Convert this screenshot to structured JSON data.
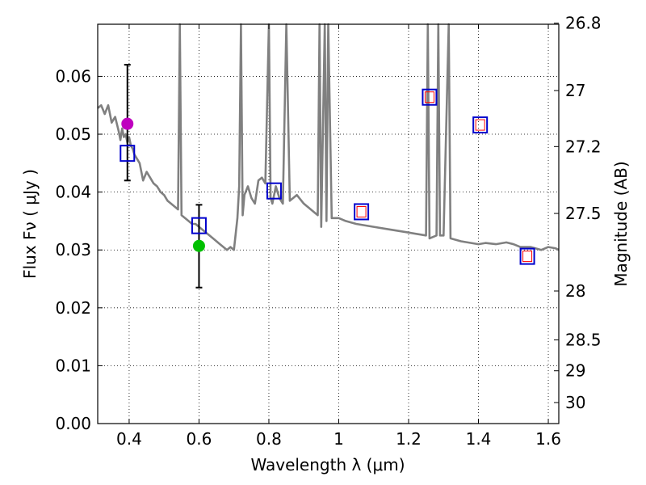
{
  "chart_data": {
    "type": "scatter",
    "xlabel": "Wavelength  λ (μm)",
    "ylabel": "Flux  Fν  ( μJy )",
    "y2label": "Magnitude (AB)",
    "xlim": [
      0.31,
      1.63
    ],
    "ylim": [
      0.0,
      0.069
    ],
    "xticks": [
      0.4,
      0.6,
      0.8,
      1.0,
      1.2,
      1.4,
      1.6
    ],
    "xtick_labels": [
      "0.4",
      "0.6",
      "0.8",
      "1",
      "1.2",
      "1.4",
      "1.6"
    ],
    "yticks": [
      0.0,
      0.01,
      0.02,
      0.03,
      0.04,
      0.05,
      0.06
    ],
    "ytick_labels": [
      "0.00",
      "0.01",
      "0.02",
      "0.03",
      "0.04",
      "0.05",
      "0.06"
    ],
    "y2ticks": [
      {
        "mag": 26.8,
        "label": "26.8"
      },
      {
        "mag": 27.0,
        "label": "27"
      },
      {
        "mag": 27.2,
        "label": "27.2"
      },
      {
        "mag": 27.5,
        "label": "27.5"
      },
      {
        "mag": 28.0,
        "label": "28"
      },
      {
        "mag": 28.5,
        "label": "28.5"
      },
      {
        "mag": 29.0,
        "label": "29"
      },
      {
        "mag": 30.0,
        "label": "30"
      }
    ],
    "grid": true,
    "colors": {
      "model": "#808080",
      "model_points": "#0000cc",
      "model_inner": "#ff0000",
      "obs_magenta": "#bf00bf",
      "obs_green": "#00c000",
      "errorbar": "#000000"
    },
    "series": [
      {
        "kind": "model_spectrum",
        "x": [
          0.31,
          0.32,
          0.33,
          0.34,
          0.35,
          0.36,
          0.37,
          0.375,
          0.38,
          0.385,
          0.39,
          0.395,
          0.4,
          0.405,
          0.41,
          0.415,
          0.42,
          0.425,
          0.43,
          0.44,
          0.45,
          0.46,
          0.47,
          0.48,
          0.49,
          0.5,
          0.51,
          0.52,
          0.53,
          0.54,
          0.545,
          0.55,
          0.56,
          0.57,
          0.58,
          0.59,
          0.6,
          0.61,
          0.62,
          0.63,
          0.64,
          0.65,
          0.66,
          0.67,
          0.68,
          0.69,
          0.7,
          0.71,
          0.715,
          0.72,
          0.725,
          0.73,
          0.74,
          0.75,
          0.76,
          0.77,
          0.78,
          0.79,
          0.8,
          0.805,
          0.81,
          0.82,
          0.83,
          0.84,
          0.85,
          0.86,
          0.88,
          0.9,
          0.92,
          0.94,
          0.945,
          0.95,
          0.96,
          0.965,
          0.97,
          0.98,
          1.0,
          1.02,
          1.05,
          1.1,
          1.15,
          1.2,
          1.25,
          1.255,
          1.26,
          1.28,
          1.285,
          1.29,
          1.3,
          1.315,
          1.32,
          1.35,
          1.4,
          1.42,
          1.45,
          1.48,
          1.5,
          1.52,
          1.55,
          1.58,
          1.6,
          1.62,
          1.63
        ],
        "y": [
          0.0545,
          0.055,
          0.0535,
          0.055,
          0.052,
          0.053,
          0.0505,
          0.049,
          0.051,
          0.0495,
          0.05,
          0.0485,
          0.0495,
          0.048,
          0.0475,
          0.0465,
          0.046,
          0.0455,
          0.045,
          0.042,
          0.0435,
          0.0425,
          0.0415,
          0.041,
          0.04,
          0.0395,
          0.0385,
          0.038,
          0.0375,
          0.037,
          0.069,
          0.036,
          0.0355,
          0.035,
          0.0345,
          0.0345,
          0.034,
          0.0335,
          0.033,
          0.0325,
          0.032,
          0.0315,
          0.031,
          0.0305,
          0.03,
          0.0305,
          0.03,
          0.0355,
          0.041,
          0.069,
          0.036,
          0.0395,
          0.041,
          0.039,
          0.038,
          0.042,
          0.0425,
          0.0415,
          0.069,
          0.039,
          0.038,
          0.041,
          0.039,
          0.038,
          0.069,
          0.0385,
          0.0395,
          0.038,
          0.037,
          0.036,
          0.069,
          0.034,
          0.069,
          0.035,
          0.069,
          0.0355,
          0.0355,
          0.035,
          0.0345,
          0.034,
          0.0335,
          0.033,
          0.0325,
          0.069,
          0.032,
          0.0325,
          0.069,
          0.0325,
          0.0325,
          0.069,
          0.032,
          0.0315,
          0.031,
          0.0312,
          0.031,
          0.0313,
          0.031,
          0.0305,
          0.0305,
          0.03,
          0.0305,
          0.0303,
          0.03
        ]
      },
      {
        "kind": "model_band_points",
        "x": [
          0.395,
          0.6,
          0.815,
          1.065,
          1.26,
          1.405,
          1.54
        ],
        "y": [
          0.0467,
          0.0342,
          0.0402,
          0.0366,
          0.0564,
          0.0516,
          0.0289
        ]
      },
      {
        "kind": "observed",
        "x": [
          0.395,
          0.6
        ],
        "y": [
          0.0518,
          0.0307
        ],
        "yerr_low": [
          0.042,
          0.0235
        ],
        "yerr_high": [
          0.062,
          0.0378
        ],
        "colors": [
          "#bf00bf",
          "#00c000"
        ]
      }
    ]
  }
}
